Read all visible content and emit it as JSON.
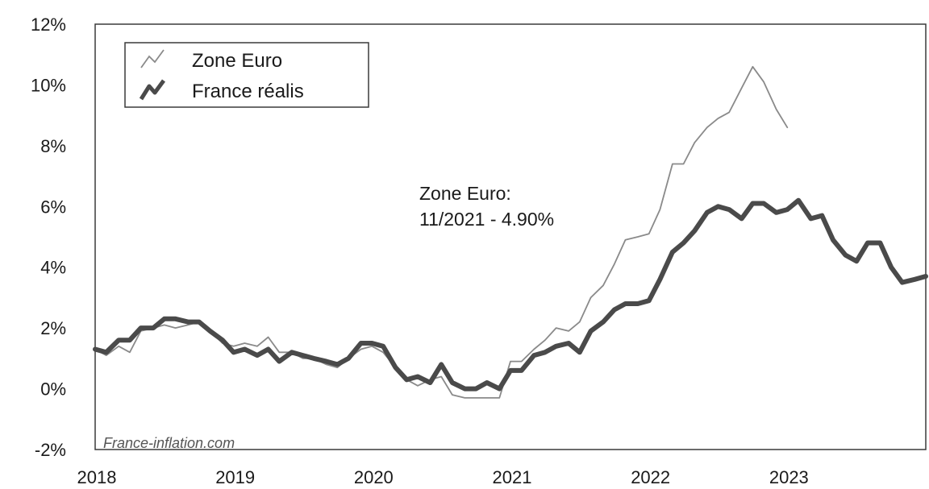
{
  "chart_data": {
    "type": "line",
    "title": "",
    "xlabel": "",
    "ylabel": "",
    "ylim": [
      -2,
      12
    ],
    "xlim": [
      2018,
      2024
    ],
    "y_ticks": [
      "12%",
      "10%",
      "8%",
      "6%",
      "4%",
      "2%",
      "0%",
      "-2%"
    ],
    "y_tick_values": [
      12,
      10,
      8,
      6,
      4,
      2,
      0,
      -2
    ],
    "x_ticks": [
      "2018",
      "2019",
      "2020",
      "2021",
      "2022",
      "2023"
    ],
    "x_tick_values": [
      2018,
      2019,
      2020,
      2021,
      2022,
      2023
    ],
    "grid": false,
    "legend_position": "top-left",
    "annotation": {
      "line1": "Zone Euro:",
      "line2": "11/2021 - 4.90%"
    },
    "watermark": "France-inflation.com",
    "series": [
      {
        "name": "Zone Euro",
        "color": "#8a8a8a",
        "style": "thin",
        "x": [
          2018.0,
          2018.08,
          2018.17,
          2018.25,
          2018.33,
          2018.42,
          2018.5,
          2018.58,
          2018.67,
          2018.75,
          2018.83,
          2018.92,
          2019.0,
          2019.08,
          2019.17,
          2019.25,
          2019.33,
          2019.42,
          2019.5,
          2019.58,
          2019.67,
          2019.75,
          2019.83,
          2019.92,
          2020.0,
          2020.08,
          2020.17,
          2020.25,
          2020.33,
          2020.42,
          2020.5,
          2020.58,
          2020.67,
          2020.75,
          2020.83,
          2020.92,
          2021.0,
          2021.08,
          2021.17,
          2021.25,
          2021.33,
          2021.42,
          2021.5,
          2021.58,
          2021.67,
          2021.75,
          2021.83,
          2021.92,
          2022.0,
          2022.08,
          2022.17,
          2022.25,
          2022.33,
          2022.42,
          2022.5,
          2022.58,
          2022.67,
          2022.75,
          2022.83,
          2022.92,
          2023.0
        ],
        "y": [
          1.3,
          1.1,
          1.4,
          1.2,
          1.9,
          2.0,
          2.1,
          2.0,
          2.1,
          2.2,
          1.9,
          1.5,
          1.4,
          1.5,
          1.4,
          1.7,
          1.2,
          1.2,
          1.0,
          1.0,
          0.8,
          0.7,
          1.0,
          1.3,
          1.4,
          1.2,
          0.7,
          0.3,
          0.1,
          0.3,
          0.4,
          -0.2,
          -0.3,
          -0.3,
          -0.3,
          -0.3,
          0.9,
          0.9,
          1.3,
          1.6,
          2.0,
          1.9,
          2.2,
          3.0,
          3.4,
          4.1,
          4.9,
          5.0,
          5.1,
          5.9,
          7.4,
          7.4,
          8.1,
          8.6,
          8.9,
          9.1,
          9.9,
          10.6,
          10.1,
          9.2,
          8.6
        ]
      },
      {
        "name": "France réalis",
        "color": "#4a4a4a",
        "style": "thick",
        "x": [
          2018.0,
          2018.08,
          2018.17,
          2018.25,
          2018.33,
          2018.42,
          2018.5,
          2018.58,
          2018.67,
          2018.75,
          2018.83,
          2018.92,
          2019.0,
          2019.08,
          2019.17,
          2019.25,
          2019.33,
          2019.42,
          2019.5,
          2019.58,
          2019.67,
          2019.75,
          2019.83,
          2019.92,
          2020.0,
          2020.08,
          2020.17,
          2020.25,
          2020.33,
          2020.42,
          2020.5,
          2020.58,
          2020.67,
          2020.75,
          2020.83,
          2020.92,
          2021.0,
          2021.08,
          2021.17,
          2021.25,
          2021.33,
          2021.42,
          2021.5,
          2021.58,
          2021.67,
          2021.75,
          2021.83,
          2021.92,
          2022.0,
          2022.08,
          2022.17,
          2022.25,
          2022.33,
          2022.42,
          2022.5,
          2022.58,
          2022.67,
          2022.75,
          2022.83,
          2022.92,
          2023.0,
          2023.08,
          2023.17,
          2023.25,
          2023.33,
          2023.42,
          2023.5,
          2023.58,
          2023.67,
          2023.75,
          2023.83,
          2023.92,
          2024.0
        ],
        "y": [
          1.3,
          1.2,
          1.6,
          1.6,
          2.0,
          2.0,
          2.3,
          2.3,
          2.2,
          2.2,
          1.9,
          1.6,
          1.2,
          1.3,
          1.1,
          1.3,
          0.9,
          1.2,
          1.1,
          1.0,
          0.9,
          0.8,
          1.0,
          1.5,
          1.5,
          1.4,
          0.7,
          0.3,
          0.4,
          0.2,
          0.8,
          0.2,
          0.0,
          0.0,
          0.2,
          0.0,
          0.6,
          0.6,
          1.1,
          1.2,
          1.4,
          1.5,
          1.2,
          1.9,
          2.2,
          2.6,
          2.8,
          2.8,
          2.9,
          3.6,
          4.5,
          4.8,
          5.2,
          5.8,
          6.0,
          5.9,
          5.6,
          6.1,
          6.1,
          5.8,
          5.9,
          6.2,
          5.6,
          5.7,
          4.9,
          4.4,
          4.2,
          4.8,
          4.8,
          4.0,
          3.5,
          3.6,
          3.7
        ]
      }
    ]
  }
}
